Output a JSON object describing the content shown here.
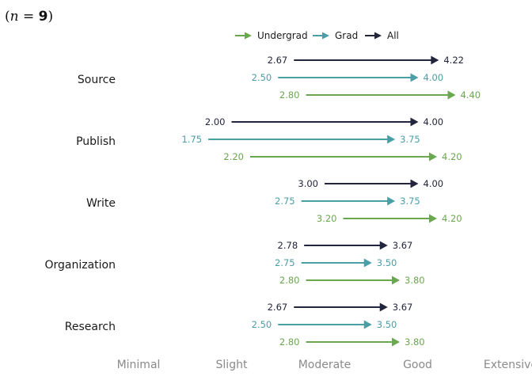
{
  "chart_data": {
    "type": "arrow-range",
    "annotation": {
      "prefix": "(",
      "n_symbol": "n",
      "equals": " = ",
      "n_value": "9",
      "suffix": ")"
    },
    "x_ticks": [
      {
        "value": 1,
        "label": "Minimal"
      },
      {
        "value": 2,
        "label": "Slight"
      },
      {
        "value": 3,
        "label": "Moderate"
      },
      {
        "value": 4,
        "label": "Good"
      },
      {
        "value": 5,
        "label": "Extensive"
      }
    ],
    "xlim": [
      1,
      5
    ],
    "legend_position": "top-center",
    "series_meta": [
      {
        "key": "undergrad",
        "name": "Undergrad",
        "color": "#6aa84f"
      },
      {
        "key": "grad",
        "name": "Grad",
        "color": "#4a9ea6"
      },
      {
        "key": "all",
        "name": "All",
        "color": "#22253b"
      }
    ],
    "categories": [
      {
        "name": "Source",
        "rows": [
          {
            "series": "all",
            "start": 2.67,
            "end": 4.22,
            "start_label": "2.67",
            "end_label": "4.22"
          },
          {
            "series": "grad",
            "start": 2.5,
            "end": 4.0,
            "start_label": "2.50",
            "end_label": "4.00"
          },
          {
            "series": "undergrad",
            "start": 2.8,
            "end": 4.4,
            "start_label": "2.80",
            "end_label": "4.40"
          }
        ]
      },
      {
        "name": "Publish",
        "rows": [
          {
            "series": "all",
            "start": 2.0,
            "end": 4.0,
            "start_label": "2.00",
            "end_label": "4.00"
          },
          {
            "series": "grad",
            "start": 1.75,
            "end": 3.75,
            "start_label": "1.75",
            "end_label": "3.75"
          },
          {
            "series": "undergrad",
            "start": 2.2,
            "end": 4.2,
            "start_label": "2.20",
            "end_label": "4.20"
          }
        ]
      },
      {
        "name": "Write",
        "rows": [
          {
            "series": "all",
            "start": 3.0,
            "end": 4.0,
            "start_label": "3.00",
            "end_label": "4.00"
          },
          {
            "series": "grad",
            "start": 2.75,
            "end": 3.75,
            "start_label": "2.75",
            "end_label": "3.75"
          },
          {
            "series": "undergrad",
            "start": 3.2,
            "end": 4.2,
            "start_label": "3.20",
            "end_label": "4.20"
          }
        ]
      },
      {
        "name": "Organization",
        "rows": [
          {
            "series": "all",
            "start": 2.78,
            "end": 3.67,
            "start_label": "2.78",
            "end_label": "3.67"
          },
          {
            "series": "grad",
            "start": 2.75,
            "end": 3.5,
            "start_label": "2.75",
            "end_label": "3.50"
          },
          {
            "series": "undergrad",
            "start": 2.8,
            "end": 3.8,
            "start_label": "2.80",
            "end_label": "3.80"
          }
        ]
      },
      {
        "name": "Research",
        "rows": [
          {
            "series": "all",
            "start": 2.67,
            "end": 3.67,
            "start_label": "2.67",
            "end_label": "3.67"
          },
          {
            "series": "grad",
            "start": 2.5,
            "end": 3.5,
            "start_label": "2.50",
            "end_label": "3.50"
          },
          {
            "series": "undergrad",
            "start": 2.8,
            "end": 3.8,
            "start_label": "2.80",
            "end_label": "3.80"
          }
        ]
      }
    ]
  }
}
